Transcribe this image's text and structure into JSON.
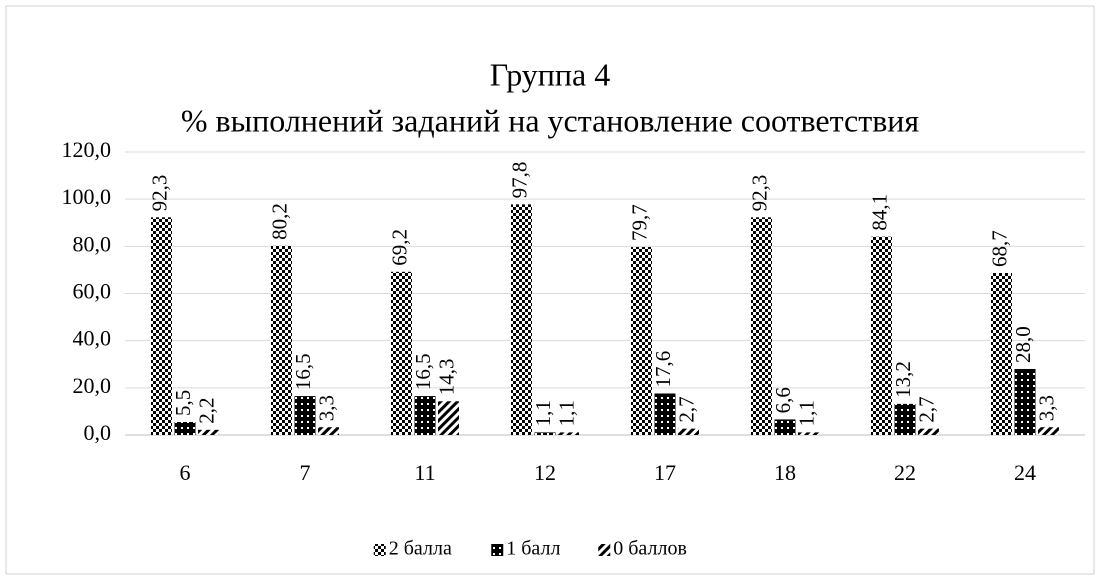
{
  "chart_data": {
    "type": "bar",
    "title": "Группа 4",
    "subtitle": "% выполнений заданий на установление соответствия",
    "categories": [
      "6",
      "7",
      "11",
      "12",
      "17",
      "18",
      "22",
      "24"
    ],
    "series": [
      {
        "name": "2 балла",
        "color": "#000000",
        "pattern": "checker",
        "values": [
          92.3,
          80.2,
          69.2,
          97.8,
          79.7,
          92.3,
          84.1,
          68.7
        ],
        "value_labels": [
          "92,3",
          "80,2",
          "69,2",
          "97,8",
          "79,7",
          "92,3",
          "84,1",
          "68,7"
        ]
      },
      {
        "name": "1 балл",
        "color": "#000000",
        "pattern": "dots",
        "values": [
          5.5,
          16.5,
          16.5,
          1.1,
          17.6,
          6.6,
          13.2,
          28.0
        ],
        "value_labels": [
          "5,5",
          "16,5",
          "16,5",
          "1,1",
          "17,6",
          "6,6",
          "13,2",
          "28,0"
        ]
      },
      {
        "name": "0 баллов",
        "color": "#000000",
        "pattern": "diagonal",
        "values": [
          2.2,
          3.3,
          14.3,
          1.1,
          2.7,
          1.1,
          2.7,
          3.3
        ],
        "value_labels": [
          "2,2",
          "3,3",
          "14,3",
          "1,1",
          "2,7",
          "1,1",
          "2,7",
          "3,3"
        ]
      }
    ],
    "ylim": [
      0,
      120
    ],
    "yticks": [
      {
        "value": 0,
        "label": "0,0"
      },
      {
        "value": 20,
        "label": "20,0"
      },
      {
        "value": 40,
        "label": "40,0"
      },
      {
        "value": 60,
        "label": "60,0"
      },
      {
        "value": 80,
        "label": "80,0"
      },
      {
        "value": 100,
        "label": "100,0"
      },
      {
        "value": 120,
        "label": "120,0"
      }
    ],
    "grid": true,
    "legend": "bottom"
  }
}
